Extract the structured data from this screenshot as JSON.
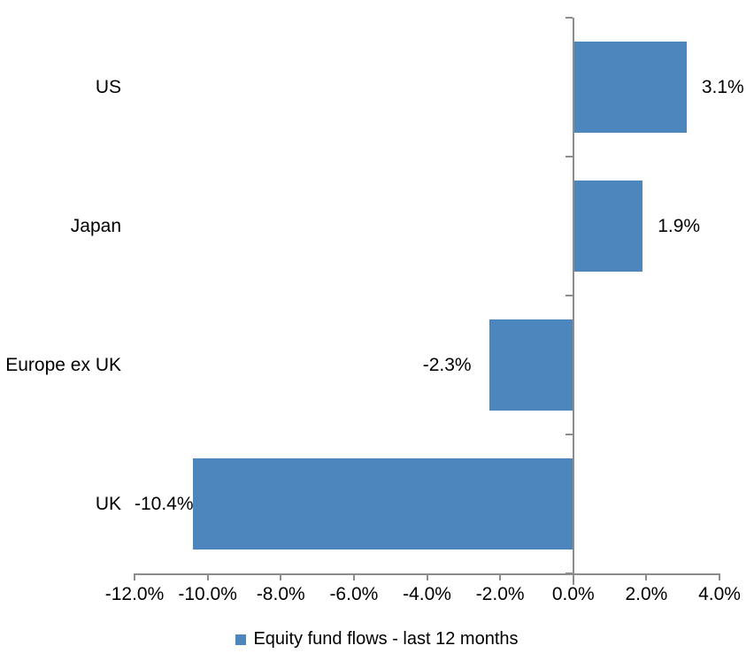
{
  "chart_data": {
    "type": "bar",
    "orientation": "horizontal",
    "title": "",
    "categories": [
      "US",
      "Japan",
      "Europe ex UK",
      "UK"
    ],
    "values": [
      3.1,
      1.9,
      -2.3,
      -10.4
    ],
    "value_labels": [
      "3.1%",
      "1.9%",
      "-2.3%",
      "-10.4%"
    ],
    "legend": "Equity fund flows - last 12 months",
    "legend_position": "bottom",
    "xlim": [
      -12,
      4
    ],
    "x_ticks": [
      -12,
      -10,
      -8,
      -6,
      -4,
      -2,
      0,
      2,
      4
    ],
    "x_tick_labels": [
      "-12.0%",
      "-10.0%",
      "-8.0%",
      "-6.0%",
      "-4.0%",
      "-2.0%",
      "0.0%",
      "2.0%",
      "4.0%"
    ],
    "grid": false,
    "colors": {
      "bar": "#4D86BD",
      "axis": "#8C8C8C",
      "text": "#000000",
      "background": "#FFFFFF"
    }
  }
}
